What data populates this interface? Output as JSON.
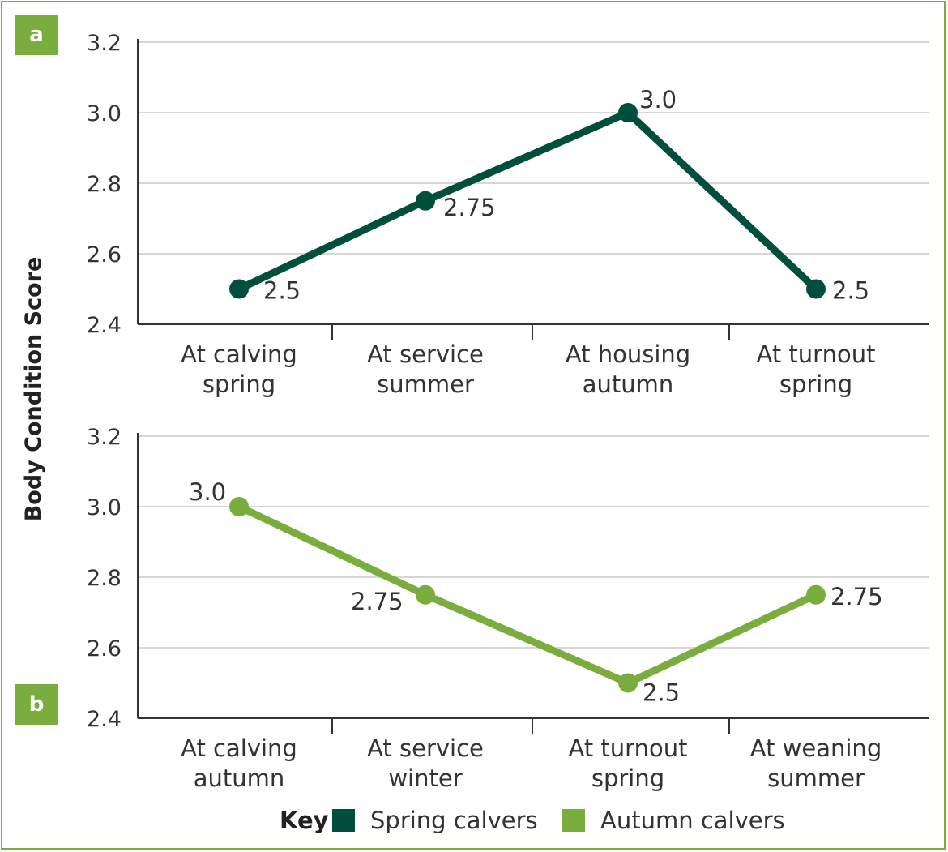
{
  "ylabel": "Body Condition Score",
  "colors": {
    "spring": "#004f3c",
    "autumn": "#7aad3e",
    "badge": "#7aad3e",
    "grid": "#c8c8c8"
  },
  "key": {
    "label": "Key",
    "entries": [
      {
        "name": "Spring calvers",
        "color": "#004f3c"
      },
      {
        "name": "Autumn calvers",
        "color": "#7aad3e"
      }
    ]
  },
  "chart_data": [
    {
      "type": "line",
      "panel": "a",
      "ylim": [
        2.4,
        3.2
      ],
      "yticks": [
        "3.2",
        "3.0",
        "2.8",
        "2.6",
        "2.4"
      ],
      "categories": [
        [
          "At calving",
          "spring"
        ],
        [
          "At service",
          "summer"
        ],
        [
          "At housing",
          "autumn"
        ],
        [
          "At turnout",
          "spring"
        ]
      ],
      "series": [
        {
          "values": [
            2.5,
            2.75,
            3.0,
            2.5
          ],
          "labels": [
            "2.5",
            "2.75",
            "3.0",
            "2.5"
          ],
          "color": "#004f3c"
        }
      ],
      "grid": true
    },
    {
      "type": "line",
      "panel": "b",
      "ylim": [
        2.4,
        3.2
      ],
      "yticks": [
        "3.2",
        "3.0",
        "2.8",
        "2.6",
        "2.4"
      ],
      "categories": [
        [
          "At calving",
          "autumn"
        ],
        [
          "At service",
          "winter"
        ],
        [
          "At turnout",
          "spring"
        ],
        [
          "At weaning",
          "summer"
        ]
      ],
      "series": [
        {
          "values": [
            3.0,
            2.75,
            2.5,
            2.75
          ],
          "labels": [
            "3.0",
            "2.75",
            "2.5",
            "2.75"
          ],
          "color": "#7aad3e"
        }
      ],
      "grid": true
    }
  ]
}
